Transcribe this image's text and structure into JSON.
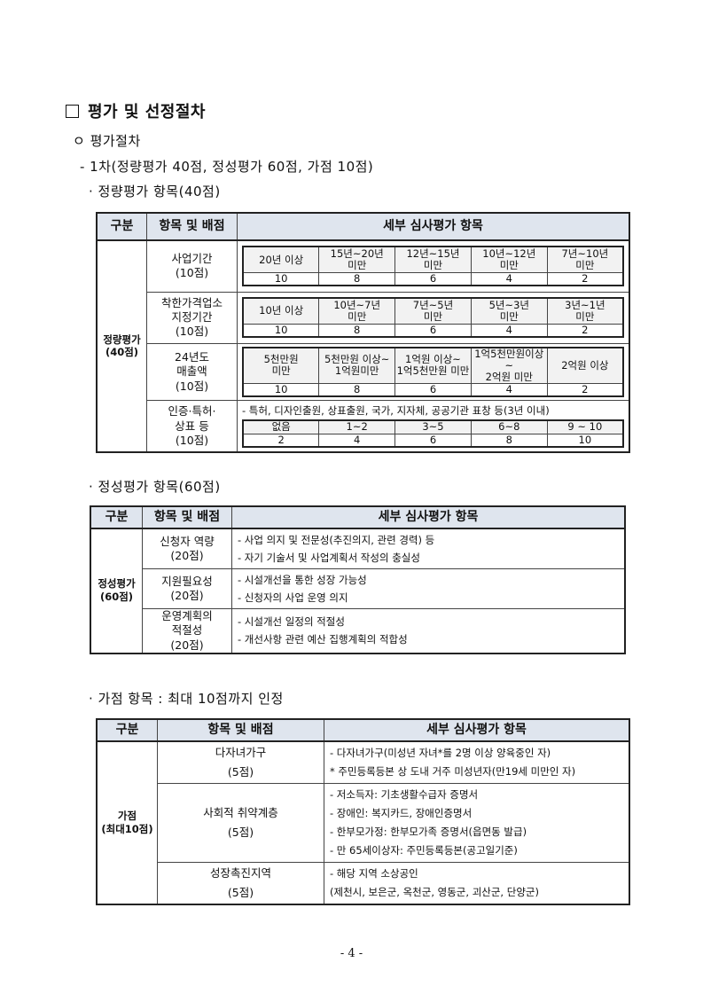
{
  "heading": "평가 및 선정절차",
  "sub1": "ㅇ 평가절차",
  "sub2": "- 1차(정량평가 40점, 정성평가 60점, 가점 10점)",
  "headers": [
    "구분",
    "항목 및 배점",
    "세부 심사평가 항목"
  ],
  "quant": {
    "title": "· 정량평가 항목(40점)",
    "category": "정량평가\n(40점)",
    "rows": [
      {
        "item": "사업기간\n(10점)",
        "labels": [
          "20년 이상",
          "15년~20년\n미만",
          "12년~15년\n미만",
          "10년~12년\n미만",
          "7년~10년\n미만"
        ],
        "scores": [
          "10",
          "8",
          "6",
          "4",
          "2"
        ]
      },
      {
        "item": "착한가격업소\n지정기간\n(10점)",
        "labels": [
          "10년 이상",
          "10년~7년\n미만",
          "7년~5년\n미만",
          "5년~3년\n미만",
          "3년~1년\n미만"
        ],
        "scores": [
          "10",
          "8",
          "6",
          "4",
          "2"
        ]
      },
      {
        "item": "24년도\n매출액\n(10점)",
        "labels": [
          "5천만원\n미만",
          "5천만원 이상~\n1억원미만",
          "1억원 이상~\n1억5천만원 미만",
          "1억5천만원이상~\n2억원 미만",
          "2억원 이상"
        ],
        "scores": [
          "10",
          "8",
          "6",
          "4",
          "2"
        ]
      },
      {
        "item": "인증·특허·\n상표 등\n(10점)",
        "note": "- 특허, 디자인출원, 상표출원, 국가, 지자체, 공공기관 표창 등(3년 이내)",
        "labels": [
          "없음",
          "1~2",
          "3~5",
          "6~8",
          "9 ~ 10"
        ],
        "scores": [
          "2",
          "4",
          "6",
          "8",
          "10"
        ]
      }
    ]
  },
  "qual": {
    "title": "· 정성평가 항목(60점)",
    "category": "정성평가\n(60점)",
    "rows": [
      {
        "item": "신청자 역량\n(20점)",
        "details": [
          "- 사업 의지 및 전문성(추진의지, 관련 경력) 등",
          "- 자기 기술서 및 사업계획서 작성의 충실성"
        ]
      },
      {
        "item": "지원필요성\n(20점)",
        "details": [
          "- 시설개선을 통한 성장 가능성",
          "- 신청자의 사업 운영 의지"
        ]
      },
      {
        "item": "운영계획의\n적절성\n(20점)",
        "details": [
          "- 시설개선 일정의 적절성",
          "- 개선사항 관련 예산 집행계획의 적합성"
        ]
      }
    ]
  },
  "bonus": {
    "title": "· 가점 항목 : 최대 10점까지 인정",
    "category": "가점\n(최대10점)",
    "rows": [
      {
        "item": "다자녀가구\n(5점)",
        "details": [
          "- 다자녀가구(미성년 자녀*를 2명 이상 양육중인 자)",
          "* 주민등록등본 상 도내 거주 미성년자(만19세 미만인 자)"
        ]
      },
      {
        "item": "사회적 취약계층\n(5점)",
        "details": [
          "- 저소득자: 기초생활수급자 증명서",
          "- 장애인: 복지카드, 장애인증명서",
          "- 한부모가정: 한부모가족 증명서(읍면동 발급)",
          "- 만 65세이상자: 주민등록등본(공고일기준)"
        ]
      },
      {
        "item": "성장촉진지역\n(5점)",
        "details": [
          "- 해당 지역 소상공인",
          "(제천시, 보은군, 옥천군, 영동군, 괴산군, 단양군)"
        ]
      }
    ]
  },
  "page_number": "- 4 -",
  "colors": {
    "header_bg": "#dfe5ee",
    "inner_label_bg": "#f2f2f2"
  }
}
